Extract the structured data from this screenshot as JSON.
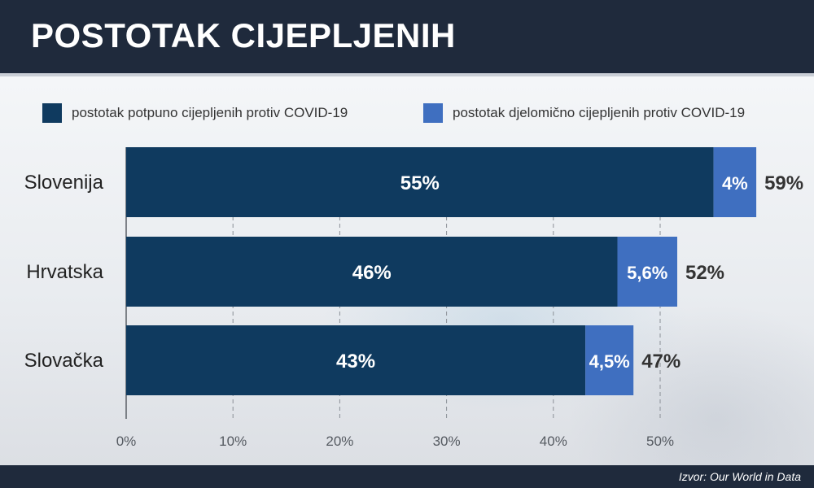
{
  "header": {
    "title": "POSTOTAK CIJEPLJENIH"
  },
  "footer": {
    "source": "Izvor: Our World in Data"
  },
  "colors": {
    "full": "#0f3a5f",
    "partial": "#3f6fc0",
    "header_bg": "#1f2a3c"
  },
  "chart_data": {
    "type": "bar",
    "orientation": "horizontal",
    "stacked": true,
    "categories": [
      "Slovenija",
      "Hrvatska",
      "Slovačka"
    ],
    "series": [
      {
        "name": "postotak potpuno cijepljenih protiv COVID-19",
        "values": [
          55,
          46,
          43
        ],
        "labels": [
          "55%",
          "46%",
          "43%"
        ],
        "color": "#0f3a5f"
      },
      {
        "name": "postotak djelomično cijepljenih protiv COVID-19",
        "values": [
          4,
          5.6,
          4.5
        ],
        "labels": [
          "4%",
          "5,6%",
          "4,5%"
        ],
        "color": "#3f6fc0"
      }
    ],
    "totals": {
      "values": [
        59,
        52,
        47
      ],
      "labels": [
        "59%",
        "52%",
        "47%"
      ]
    },
    "xticks": [
      0,
      10,
      20,
      30,
      40,
      50
    ],
    "xtick_labels": [
      "0%",
      "10%",
      "20%",
      "30%",
      "40%",
      "50%"
    ],
    "xlim": [
      0,
      60
    ],
    "grid": "vertical dashed",
    "legend": "top"
  }
}
